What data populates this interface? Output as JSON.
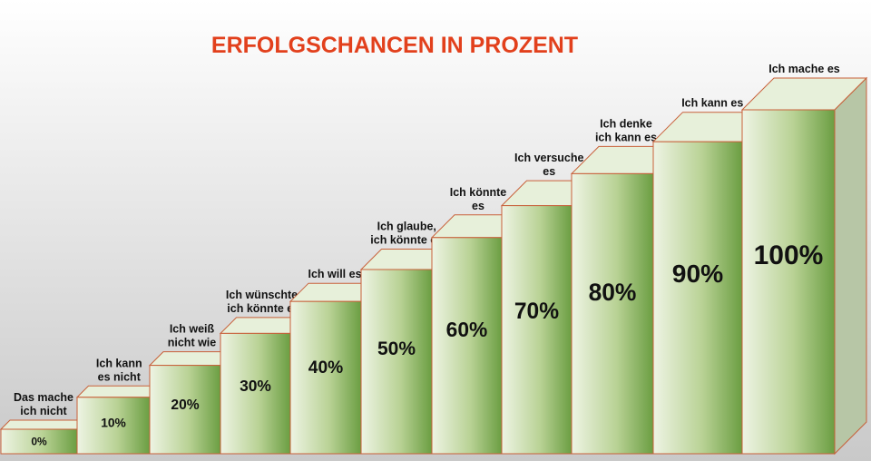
{
  "chart_data": {
    "type": "stairs",
    "title": "ERFOLGSCHANCEN IN PROZENT",
    "categories": [
      "Das mache\nich nicht",
      "Ich kann\nes nicht",
      "Ich weiß\nnicht wie",
      "Ich wünschte,\nich könnte es",
      "Ich will es",
      "Ich glaube,\nich könnte es",
      "Ich könnte\nes",
      "Ich versuche\nes",
      "Ich denke\nich kann es",
      "Ich kann es",
      "Ich mache es"
    ],
    "values": [
      0,
      10,
      20,
      30,
      40,
      50,
      60,
      70,
      80,
      90,
      100
    ],
    "value_labels": [
      "0%",
      "10%",
      "20%",
      "30%",
      "40%",
      "50%",
      "60%",
      "70%",
      "80%",
      "90%",
      "100%"
    ],
    "color": "#6b9e42"
  }
}
